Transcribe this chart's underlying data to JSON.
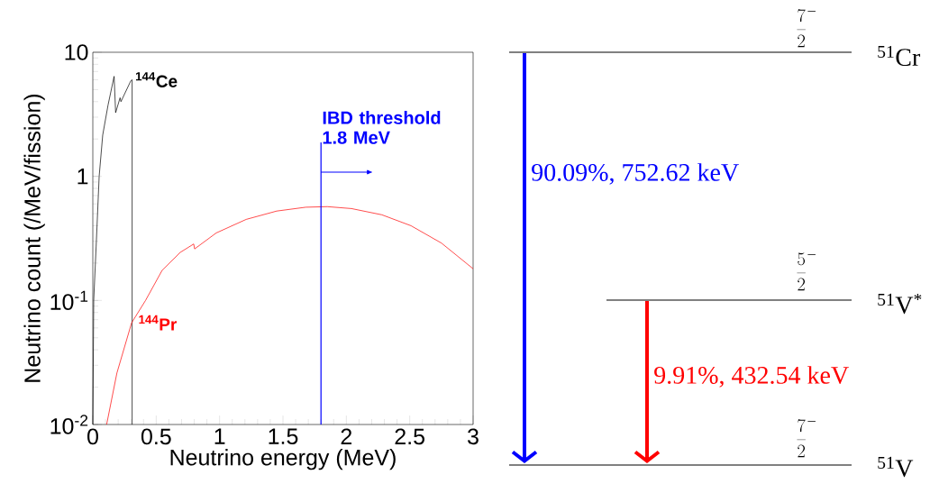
{
  "chart_data": [
    {
      "type": "line",
      "xlabel": "Neutrino energy (MeV)",
      "ylabel": "Neutrino count (/MeV/fission)",
      "log": "y",
      "grid": false,
      "marker": "none",
      "line_style": "solid",
      "xlim": [
        0,
        3
      ],
      "ylim": [
        0.01,
        10
      ],
      "xticks": [
        0,
        0.5,
        1,
        1.5,
        2,
        2.5,
        3
      ],
      "yticks": [
        {
          "value": 0.01,
          "label": "10$^{-2}$"
        },
        {
          "value": 0.1,
          "label": "10$^{-1}$"
        },
        1,
        10
      ],
      "series": [
        {
          "name": "$^{144}$Ce",
          "color": "#000000",
          "x": [
            0,
            0.007,
            0.026,
            0.05,
            0.078,
            0.12,
            0.168,
            0.18,
            0.215,
            0.222,
            0.3,
            0.31,
            0.31
          ],
          "values": [
            0.01,
            0.1,
            0.27,
            1.0,
            2.15,
            3.75,
            6.4,
            3.26,
            4.3,
            4.0,
            5.9,
            6.0,
            0.01
          ]
        },
        {
          "name": "$^{144}$Pr",
          "color": "#ff0000",
          "x": [
            0.109,
            0.19,
            0.306,
            0.416,
            0.547,
            0.69,
            0.796,
            0.803,
            0.974,
            1.21,
            1.45,
            1.68,
            1.85,
            2.04,
            2.28,
            2.51,
            2.75,
            3.0
          ],
          "values": [
            0.01,
            0.026,
            0.066,
            0.1,
            0.175,
            0.244,
            0.285,
            0.26,
            0.35,
            0.45,
            0.525,
            0.564,
            0.57,
            0.55,
            0.49,
            0.4,
            0.29,
            0.18
          ]
        }
      ],
      "ref_lines": [
        {
          "axis": "x",
          "value": 1.8,
          "label": "IBD threshold 1.8 MeV",
          "color": "#0000ff"
        }
      ]
    },
    {
      "type": "other",
      "annotations": [
        "\\frac{7}{2}^{-}",
        "$^{51}$Cr",
        "\\frac{5}{2}^{-}",
        "$^{51}$V$^{*}$",
        "\\frac{7}{2}^{-}",
        "$^{51}$V",
        "90.09%, 752.62 keV",
        "9.91%, 432.54 keV"
      ]
    }
  ]
}
